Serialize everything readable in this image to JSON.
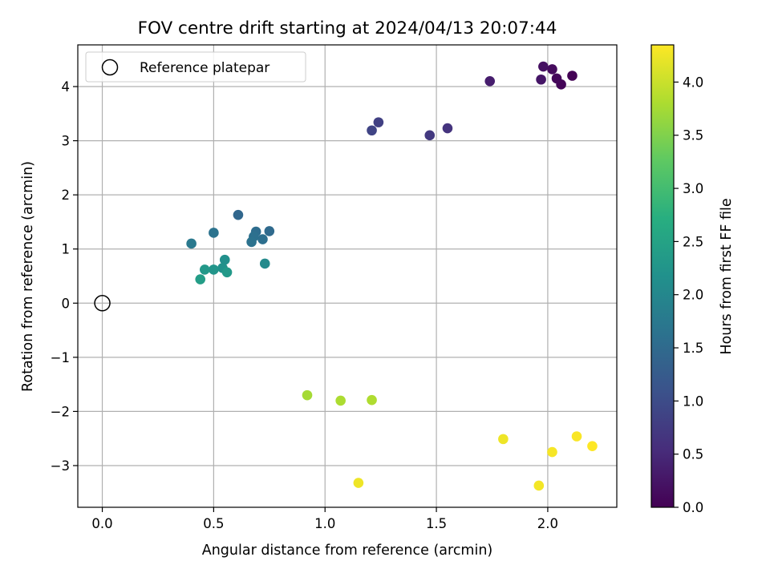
{
  "chart_data": {
    "type": "scatter",
    "title": "FOV centre drift starting at 2024/04/13 20:07:44",
    "xlabel": "Angular distance from reference (arcmin)",
    "ylabel": "Rotation from reference (arcmin)",
    "xlim": [
      -0.11,
      2.31
    ],
    "ylim": [
      -3.77,
      4.77
    ],
    "xticks": [
      0.0,
      0.5,
      1.0,
      1.5,
      2.0
    ],
    "xtick_labels": [
      "0.0",
      "0.5",
      "1.0",
      "1.5",
      "2.0"
    ],
    "yticks": [
      -3,
      -2,
      -1,
      0,
      1,
      2,
      3,
      4
    ],
    "ytick_labels": [
      "−3",
      "−2",
      "−1",
      "0",
      "1",
      "2",
      "3",
      "4"
    ],
    "grid": true,
    "legend": {
      "placement": "top-left",
      "entries": [
        "Reference platepar"
      ]
    },
    "reference_point": {
      "x": 0.0,
      "y": 0.0
    },
    "colorbar": {
      "label": "Hours from first FF file",
      "colormap": "viridis",
      "range": [
        0.0,
        4.35
      ],
      "ticks": [
        0.0,
        0.5,
        1.0,
        1.5,
        2.0,
        2.5,
        3.0,
        3.5,
        4.0
      ],
      "tick_labels": [
        "0.0",
        "0.5",
        "1.0",
        "1.5",
        "2.0",
        "2.5",
        "3.0",
        "3.5",
        "4.0"
      ]
    },
    "points": [
      {
        "x": 2.11,
        "y": 4.2,
        "c": 0.02
      },
      {
        "x": 2.06,
        "y": 4.04,
        "c": 0.05
      },
      {
        "x": 2.04,
        "y": 4.15,
        "c": 0.08
      },
      {
        "x": 2.02,
        "y": 4.32,
        "c": 0.12
      },
      {
        "x": 1.98,
        "y": 4.37,
        "c": 0.18
      },
      {
        "x": 1.97,
        "y": 4.13,
        "c": 0.25
      },
      {
        "x": 1.74,
        "y": 4.1,
        "c": 0.35
      },
      {
        "x": 1.55,
        "y": 3.23,
        "c": 0.65
      },
      {
        "x": 1.47,
        "y": 3.1,
        "c": 0.72
      },
      {
        "x": 1.24,
        "y": 3.34,
        "c": 0.82
      },
      {
        "x": 1.21,
        "y": 3.19,
        "c": 0.88
      },
      {
        "x": 0.61,
        "y": 1.63,
        "c": 1.45
      },
      {
        "x": 0.75,
        "y": 1.33,
        "c": 1.5
      },
      {
        "x": 0.69,
        "y": 1.32,
        "c": 1.55
      },
      {
        "x": 0.72,
        "y": 1.18,
        "c": 1.58
      },
      {
        "x": 0.68,
        "y": 1.23,
        "c": 1.6
      },
      {
        "x": 0.67,
        "y": 1.13,
        "c": 1.63
      },
      {
        "x": 0.5,
        "y": 1.3,
        "c": 1.65
      },
      {
        "x": 0.4,
        "y": 1.1,
        "c": 1.75
      },
      {
        "x": 0.73,
        "y": 0.73,
        "c": 2.05
      },
      {
        "x": 0.55,
        "y": 0.8,
        "c": 2.15
      },
      {
        "x": 0.54,
        "y": 0.65,
        "c": 2.2
      },
      {
        "x": 0.5,
        "y": 0.62,
        "c": 2.25
      },
      {
        "x": 0.46,
        "y": 0.62,
        "c": 2.3
      },
      {
        "x": 0.56,
        "y": 0.57,
        "c": 2.33
      },
      {
        "x": 0.44,
        "y": 0.44,
        "c": 2.4
      },
      {
        "x": 0.92,
        "y": -1.7,
        "c": 3.75
      },
      {
        "x": 1.07,
        "y": -1.8,
        "c": 3.8
      },
      {
        "x": 1.21,
        "y": -1.79,
        "c": 3.82
      },
      {
        "x": 1.15,
        "y": -3.32,
        "c": 4.25
      },
      {
        "x": 1.8,
        "y": -2.51,
        "c": 4.25
      },
      {
        "x": 1.96,
        "y": -3.37,
        "c": 4.28
      },
      {
        "x": 2.02,
        "y": -2.75,
        "c": 4.3
      },
      {
        "x": 2.13,
        "y": -2.46,
        "c": 4.32
      },
      {
        "x": 2.2,
        "y": -2.64,
        "c": 4.35
      }
    ]
  }
}
